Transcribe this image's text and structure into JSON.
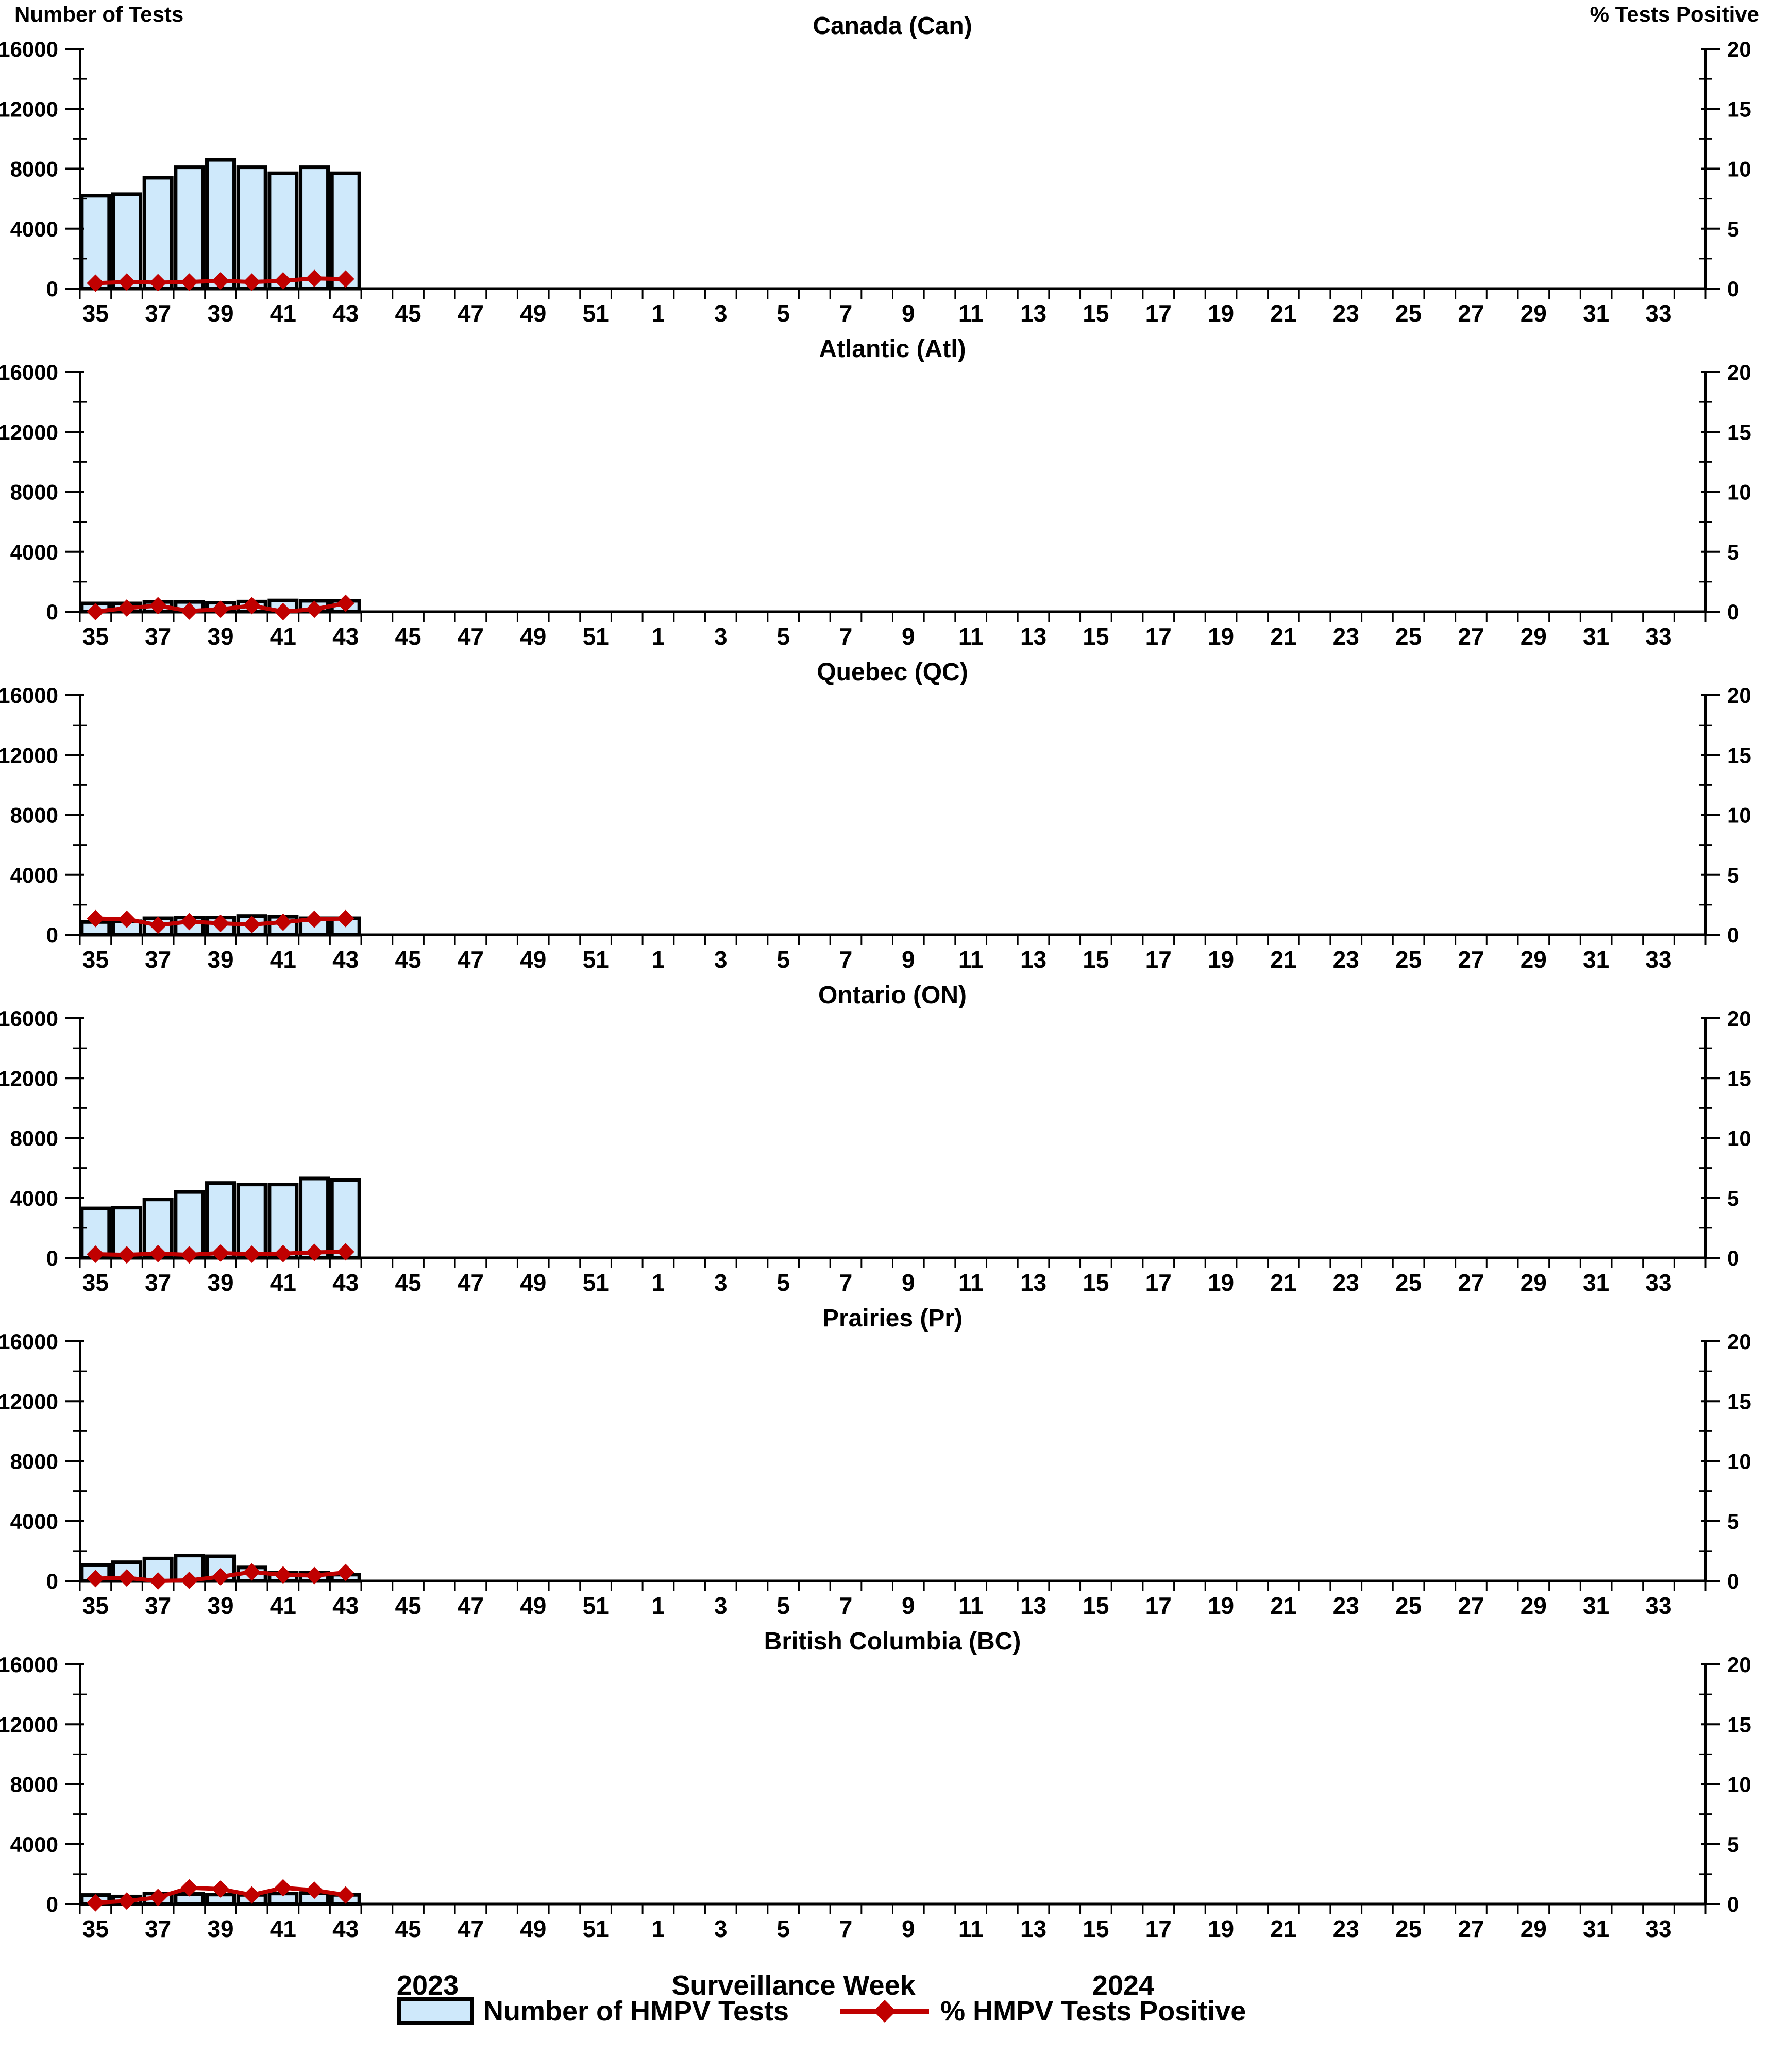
{
  "axes": {
    "left_title": "Number of Tests",
    "right_title": "% Tests Positive",
    "left_ticks": [
      0,
      4000,
      8000,
      12000,
      16000
    ],
    "left_minor_step": 2000,
    "left_max": 16000,
    "right_ticks": [
      0,
      5,
      10,
      15,
      20
    ],
    "right_minor_step": 2.5,
    "right_max": 20,
    "weeks_total": 52,
    "x_tick_labels": [
      "35",
      "37",
      "39",
      "41",
      "43",
      "45",
      "47",
      "49",
      "51",
      "1",
      "3",
      "5",
      "7",
      "9",
      "11",
      "13",
      "15",
      "17",
      "19",
      "21",
      "23",
      "25",
      "27",
      "29",
      "31",
      "33"
    ],
    "x_title": "Surveillance Week",
    "x_year_left": "2023",
    "x_year_right": "2024"
  },
  "legend": {
    "bar_label": "Number of HMPV Tests",
    "line_label": "% HMPV Tests Positive"
  },
  "colors": {
    "bar_fill": "#cfe9fb",
    "bar_stroke": "#000000",
    "line": "#c00000",
    "axis": "#000000"
  },
  "chart_data": [
    {
      "type": "bar+line",
      "title": "Canada (Can)",
      "x": [
        35,
        36,
        37,
        38,
        39,
        40,
        41,
        42,
        43
      ],
      "x_year": 2023,
      "ylim_left": [
        0,
        16000
      ],
      "ylim_right": [
        0,
        20
      ],
      "series": [
        {
          "name": "Number of HMPV Tests",
          "type": "bar",
          "axis": "left",
          "values": [
            6200,
            6300,
            7400,
            8100,
            8600,
            8100,
            7700,
            8100,
            7700
          ]
        },
        {
          "name": "% HMPV Tests Positive",
          "type": "line",
          "axis": "right",
          "values": [
            0.45,
            0.55,
            0.5,
            0.55,
            0.65,
            0.55,
            0.65,
            0.85,
            0.8
          ]
        }
      ]
    },
    {
      "type": "bar+line",
      "title": "Atlantic (Atl)",
      "x": [
        35,
        36,
        37,
        38,
        39,
        40,
        41,
        42,
        43
      ],
      "x_year": 2023,
      "ylim_left": [
        0,
        16000
      ],
      "ylim_right": [
        0,
        20
      ],
      "series": [
        {
          "name": "Number of HMPV Tests",
          "type": "bar",
          "axis": "left",
          "values": [
            550,
            550,
            650,
            650,
            600,
            675,
            750,
            725,
            725
          ]
        },
        {
          "name": "% HMPV Tests Positive",
          "type": "line",
          "axis": "right",
          "values": [
            0.0,
            0.3,
            0.5,
            0.05,
            0.2,
            0.5,
            0.0,
            0.2,
            0.7
          ]
        }
      ]
    },
    {
      "type": "bar+line",
      "title": "Quebec (QC)",
      "x": [
        35,
        36,
        37,
        38,
        39,
        40,
        41,
        42,
        43
      ],
      "x_year": 2023,
      "ylim_left": [
        0,
        16000
      ],
      "ylim_right": [
        0,
        20
      ],
      "series": [
        {
          "name": "Number of HMPV Tests",
          "type": "bar",
          "axis": "left",
          "values": [
            850,
            900,
            1100,
            1150,
            1150,
            1250,
            1200,
            1100,
            1100
          ]
        },
        {
          "name": "% HMPV Tests Positive",
          "type": "line",
          "axis": "right",
          "values": [
            1.35,
            1.3,
            0.8,
            1.1,
            0.95,
            0.85,
            1.05,
            1.3,
            1.35
          ]
        }
      ]
    },
    {
      "type": "bar+line",
      "title": "Ontario (ON)",
      "x": [
        35,
        36,
        37,
        38,
        39,
        40,
        41,
        42,
        43
      ],
      "x_year": 2023,
      "ylim_left": [
        0,
        16000
      ],
      "ylim_right": [
        0,
        20
      ],
      "series": [
        {
          "name": "Number of HMPV Tests",
          "type": "bar",
          "axis": "left",
          "values": [
            3300,
            3350,
            3900,
            4400,
            5000,
            4900,
            4900,
            5300,
            5200
          ]
        },
        {
          "name": "% HMPV Tests Positive",
          "type": "line",
          "axis": "right",
          "values": [
            0.3,
            0.25,
            0.35,
            0.25,
            0.4,
            0.3,
            0.35,
            0.45,
            0.5
          ]
        }
      ]
    },
    {
      "type": "bar+line",
      "title": "Prairies (Pr)",
      "x": [
        35,
        36,
        37,
        38,
        39,
        40,
        41,
        42,
        43
      ],
      "x_year": 2023,
      "ylim_left": [
        0,
        16000
      ],
      "ylim_right": [
        0,
        20
      ],
      "series": [
        {
          "name": "Number of HMPV Tests",
          "type": "bar",
          "axis": "left",
          "values": [
            1050,
            1250,
            1500,
            1700,
            1650,
            900,
            550,
            550,
            420
          ]
        },
        {
          "name": "% HMPV Tests Positive",
          "type": "line",
          "axis": "right",
          "values": [
            0.2,
            0.25,
            0.0,
            0.05,
            0.35,
            0.75,
            0.5,
            0.45,
            0.7
          ]
        }
      ]
    },
    {
      "type": "bar+line",
      "title": "British Columbia (BC)",
      "x": [
        35,
        36,
        37,
        38,
        39,
        40,
        41,
        42,
        43
      ],
      "x_year": 2023,
      "ylim_left": [
        0,
        16000
      ],
      "ylim_right": [
        0,
        20
      ],
      "series": [
        {
          "name": "Number of HMPV Tests",
          "type": "bar",
          "axis": "left",
          "values": [
            600,
            500,
            700,
            670,
            630,
            610,
            700,
            730,
            610
          ]
        },
        {
          "name": "% HMPV Tests Positive",
          "type": "line",
          "axis": "right",
          "values": [
            0.1,
            0.25,
            0.55,
            1.35,
            1.25,
            0.75,
            1.35,
            1.15,
            0.75
          ]
        }
      ]
    }
  ]
}
